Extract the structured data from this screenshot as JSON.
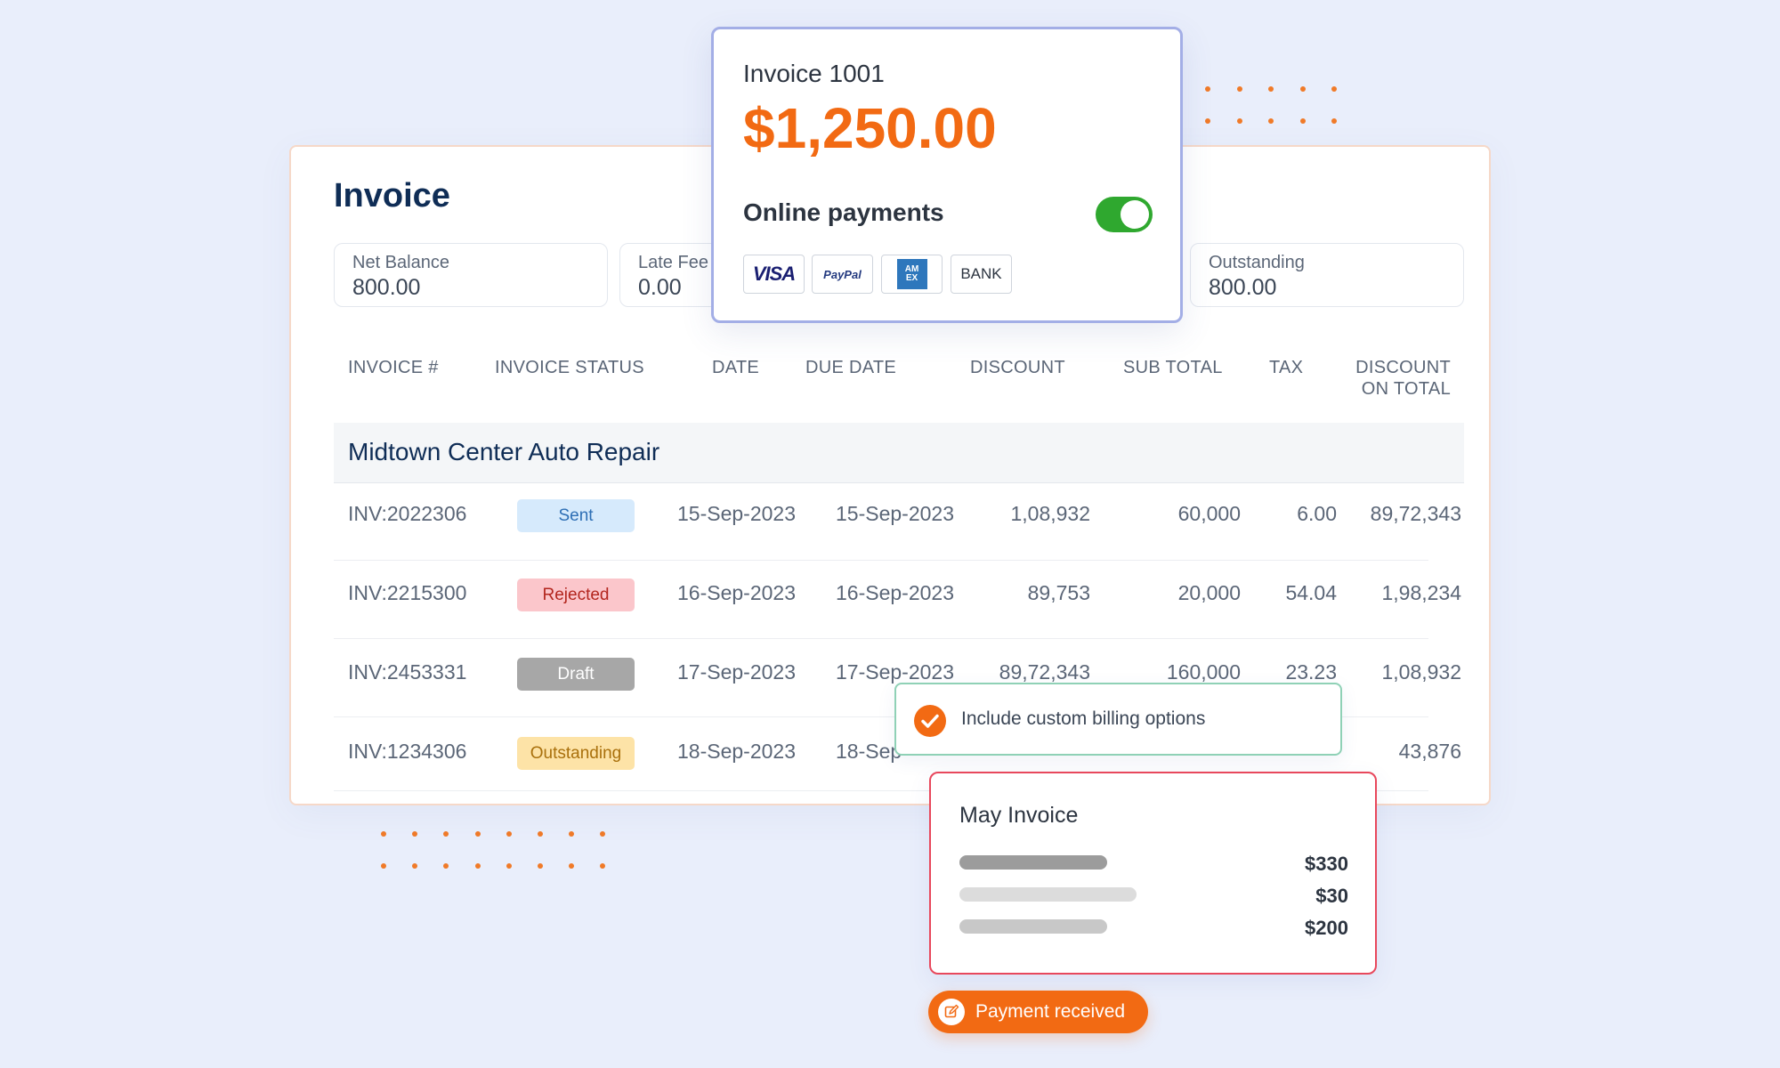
{
  "invoice_panel": {
    "title": "Invoice",
    "stats": [
      {
        "label": "Net Balance",
        "value": "800.00"
      },
      {
        "label": "Late Fee",
        "value": "0.00"
      },
      {
        "label": "Outstanding",
        "value": "800.00"
      }
    ],
    "columns": [
      "INVOICE #",
      "INVOICE STATUS",
      "DATE",
      "DUE DATE",
      "DISCOUNT",
      "SUB TOTAL",
      "TAX",
      "DISCOUNT",
      "ON TOTAL"
    ],
    "group": "Midtown Center Auto Repair",
    "rows": [
      {
        "invoice": "INV:2022306",
        "status": "Sent",
        "date": "15-Sep-2023",
        "due": "15-Sep-2023",
        "discount": "1,08,932",
        "subtotal": "60,000",
        "tax": "6.00",
        "discount_total": "89,72,343"
      },
      {
        "invoice": "INV:2215300",
        "status": "Rejected",
        "date": "16-Sep-2023",
        "due": "16-Sep-2023",
        "discount": "89,753",
        "subtotal": "20,000",
        "tax": "54.04",
        "discount_total": "1,98,234"
      },
      {
        "invoice": "INV:2453331",
        "status": "Draft",
        "date": "17-Sep-2023",
        "due": "17-Sep-2023",
        "discount": "89,72,343",
        "subtotal": "160,000",
        "tax": "23.23",
        "discount_total": "1,08,932"
      },
      {
        "invoice": "INV:1234306",
        "status": "Outstanding",
        "date": "18-Sep-2023",
        "due": "18-Sep",
        "discount": "",
        "subtotal": "",
        "tax": "",
        "discount_total": "43,876"
      }
    ],
    "status_colors": {
      "Sent": {
        "bg": "#d6eafc",
        "fg": "#2e6fb5"
      },
      "Rejected": {
        "bg": "#fbc6cb",
        "fg": "#b3261e"
      },
      "Draft": {
        "bg": "#a7a7a7",
        "fg": "#ffffff"
      },
      "Outstanding": {
        "bg": "#fde3a7",
        "fg": "#a9700c"
      }
    }
  },
  "payment_card": {
    "invoice_number": "Invoice 1001",
    "amount": "$1,250.00",
    "online_label": "Online payments",
    "online_enabled": true,
    "methods": [
      "VISA",
      "PayPal",
      "AM EX",
      "BANK"
    ]
  },
  "billing_option": {
    "label": "Include custom billing options",
    "checked": true
  },
  "may_invoice": {
    "title": "May Invoice",
    "lines": [
      {
        "amount": "$330"
      },
      {
        "amount": "$30"
      },
      {
        "amount": "$200"
      }
    ]
  },
  "toast": {
    "label": "Payment received"
  },
  "colors": {
    "accent": "#f26a13",
    "navy": "#0f2d56",
    "toggle_on": "#2fa82f"
  }
}
